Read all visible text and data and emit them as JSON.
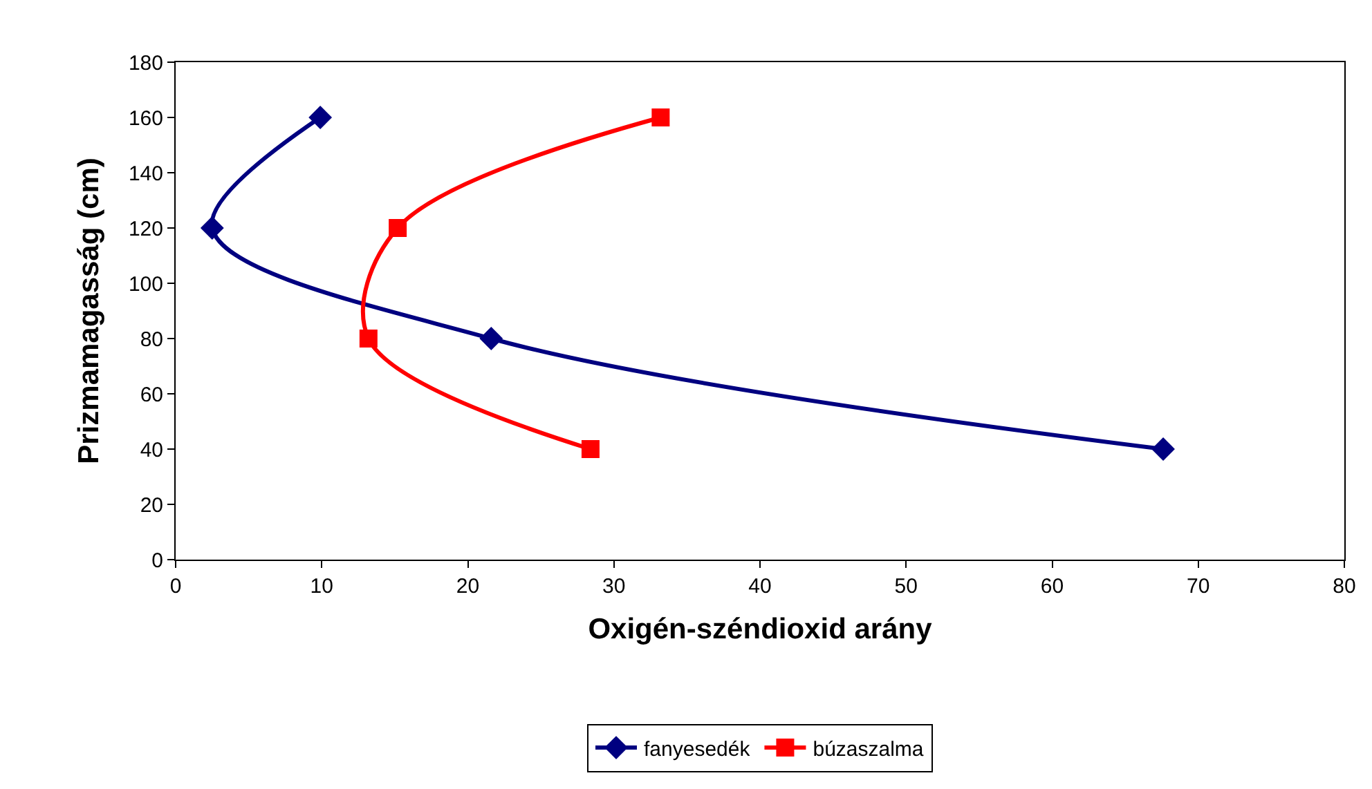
{
  "chart_data": {
    "type": "line",
    "xlabel": "Oxigén-széndioxid arány",
    "ylabel": "Prizmamagasság (cm)",
    "xlim": [
      0,
      80
    ],
    "xticks": [
      0,
      10,
      20,
      30,
      40,
      50,
      60,
      70,
      80
    ],
    "ylim": [
      0,
      180
    ],
    "yticks": [
      0,
      20,
      40,
      60,
      80,
      100,
      120,
      140,
      160,
      180
    ],
    "legend": "bottom",
    "series": [
      {
        "name": "fanyesedék",
        "color": "#000080",
        "marker": "diamond",
        "x": [
          9.9,
          2.5,
          21.6,
          67.6
        ],
        "values": [
          160,
          120,
          80,
          40
        ]
      },
      {
        "name": "búzaszalma",
        "color": "#ff0000",
        "marker": "square",
        "x": [
          33.2,
          15.2,
          13.2,
          28.4
        ],
        "values": [
          160,
          120,
          80,
          40
        ]
      }
    ]
  }
}
